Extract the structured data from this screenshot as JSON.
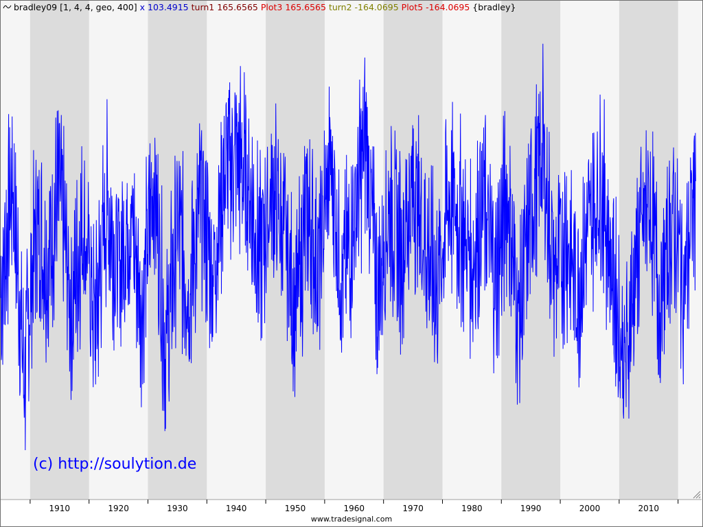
{
  "legend": {
    "icon": "wave-icon",
    "items": [
      {
        "text": "bradley09 [1, 4, 4, geo, 400]",
        "color": "#000000"
      },
      {
        "text": " x 103.4915",
        "color": "#0000cc"
      },
      {
        "text": " turn1 165.6565",
        "color": "#800000"
      },
      {
        "text": " Plot3 165.6565",
        "color": "#dd0000"
      },
      {
        "text": " turn2 -164.0695",
        "color": "#808000"
      },
      {
        "text": " Plot5 -164.0695",
        "color": "#dd0000"
      },
      {
        "text": " {bradley}",
        "color": "#000000"
      }
    ]
  },
  "watermark": "(c) http://soulytion.de",
  "footer": "www.tradesignal.com",
  "colors": {
    "line": "#0000ff",
    "band_light": "#f5f5f5",
    "band_dark": "#dcdcdc"
  },
  "chart_data": {
    "type": "line",
    "x_axis": {
      "type": "year",
      "ticks": [
        "1910",
        "1920",
        "1930",
        "1940",
        "1950",
        "1960",
        "1970",
        "1980",
        "1990",
        "2000",
        "2010"
      ],
      "xlim": [
        1900,
        2019
      ]
    },
    "grid": "alternating vertical decade bands",
    "legend_position": "top-left",
    "series": [
      {
        "color": "#0000ff",
        "x": [
          1900,
          1902,
          1904,
          1906,
          1908,
          1910,
          1912,
          1914,
          1916,
          1918,
          1920,
          1922,
          1924,
          1926,
          1928,
          1930,
          1932,
          1934,
          1936,
          1938,
          1940,
          1942,
          1944,
          1946,
          1948,
          1950,
          1952,
          1954,
          1956,
          1958,
          1960,
          1962,
          1964,
          1966,
          1968,
          1970,
          1972,
          1974,
          1976,
          1978,
          1980,
          1982,
          1984,
          1986,
          1988,
          1990,
          1992,
          1994,
          1996,
          1998,
          2000,
          2002,
          2004,
          2006,
          2008,
          2010,
          2012,
          2014,
          2016,
          2018
        ],
        "y": [
          -45,
          60,
          -120,
          20,
          -15,
          55,
          -60,
          25,
          -70,
          40,
          -20,
          30,
          -55,
          65,
          -95,
          20,
          -40,
          45,
          -25,
          70,
          85,
          60,
          -10,
          50,
          15,
          -60,
          30,
          -20,
          80,
          -35,
          25,
          100,
          -45,
          40,
          -5,
          55,
          10,
          -40,
          45,
          25,
          -15,
          40,
          -30,
          50,
          -70,
          35,
          90,
          -25,
          10,
          -40,
          20,
          60,
          -30,
          -110,
          -10,
          45,
          -55,
          30,
          -35,
          60
        ]
      }
    ]
  }
}
